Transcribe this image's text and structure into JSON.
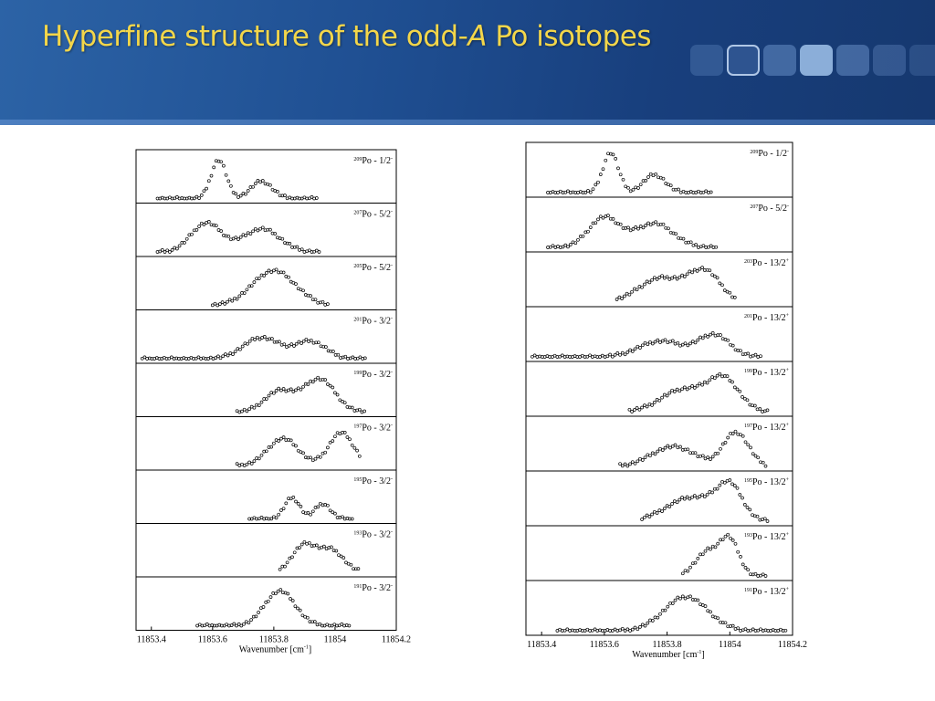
{
  "slide": {
    "title_pre": "Hyperfine structure of the odd-",
    "title_italic": "A",
    "title_post": " Po isotopes"
  },
  "colors": {
    "title": "#f3d64a",
    "banner": "#1d4a8a",
    "marker": "#000000"
  },
  "chart_data": [
    {
      "type": "scatter",
      "title": "",
      "xlabel": "Wavenumber [cm",
      "xlabel_sup": "-1",
      "xlabel_end": "]",
      "xlim": [
        11853.35,
        11854.2
      ],
      "xticks": [
        "11853.4",
        "11853.6",
        "11853.8",
        "11854",
        "11854.2"
      ],
      "panels": [
        {
          "isotope": "209",
          "label": "Po - 1/2",
          "sup": "-",
          "baseline": [
            11853.42,
            11853.58
          ],
          "peaks": [
            [
              11853.62,
              1.0,
              0.025
            ],
            [
              11853.76,
              0.45,
              0.035
            ]
          ],
          "range": [
            11853.42,
            11853.94
          ]
        },
        {
          "isotope": "207",
          "label": "Po - 5/2",
          "sup": "-",
          "baseline": [
            11853.42,
            11853.56
          ],
          "peaks": [
            [
              11853.58,
              0.75,
              0.05
            ],
            [
              11853.76,
              0.6,
              0.06
            ]
          ],
          "range": [
            11853.42,
            11853.95
          ]
        },
        {
          "isotope": "205",
          "label": "Po - 5/2",
          "sup": "-",
          "baseline": [
            11853.6,
            11853.68
          ],
          "peaks": [
            [
              11853.8,
              0.9,
              0.07
            ]
          ],
          "range": [
            11853.6,
            11853.98
          ]
        },
        {
          "isotope": "201",
          "label": "Po - 3/2",
          "sup": "-",
          "baseline": [
            11853.37,
            11853.65
          ],
          "peaks": [
            [
              11853.76,
              0.55,
              0.06
            ],
            [
              11853.92,
              0.45,
              0.05
            ]
          ],
          "range": [
            11853.37,
            11854.1
          ]
        },
        {
          "isotope": "199",
          "label": "Po - 3/2",
          "sup": "-",
          "baseline": [
            11853.68,
            11853.72
          ],
          "peaks": [
            [
              11853.82,
              0.55,
              0.05
            ],
            [
              11853.95,
              0.85,
              0.05
            ]
          ],
          "range": [
            11853.68,
            11854.1
          ]
        },
        {
          "isotope": "197",
          "label": "Po - 3/2",
          "sup": "-",
          "baseline": [
            11853.68,
            11853.75
          ],
          "peaks": [
            [
              11853.83,
              0.7,
              0.05
            ],
            [
              11854.02,
              0.85,
              0.04
            ]
          ],
          "range": [
            11853.68,
            11854.08
          ]
        },
        {
          "isotope": "195",
          "label": "Po - 3/2",
          "sup": "-",
          "baseline": [
            11853.72,
            11853.78
          ],
          "peaks": [
            [
              11853.86,
              0.55,
              0.025
            ],
            [
              11853.96,
              0.4,
              0.025
            ]
          ],
          "range": [
            11853.72,
            11854.06
          ]
        },
        {
          "isotope": "193",
          "label": "Po - 3/2",
          "sup": "-",
          "baseline": [
            11853.82,
            11853.85
          ],
          "peaks": [
            [
              11853.9,
              0.7,
              0.04
            ],
            [
              11853.99,
              0.55,
              0.04
            ]
          ],
          "range": [
            11853.82,
            11854.08
          ]
        },
        {
          "isotope": "191",
          "label": "Po - 3/2",
          "sup": "-",
          "baseline": [
            11853.55,
            11853.6
          ],
          "peaks": [
            [
              11853.82,
              0.9,
              0.05
            ]
          ],
          "range": [
            11853.55,
            11854.05
          ]
        }
      ]
    },
    {
      "type": "scatter",
      "title": "",
      "xlabel": "Wavenumber [cm",
      "xlabel_sup": "-1",
      "xlabel_end": "]",
      "xlim": [
        11853.35,
        11854.2
      ],
      "xticks": [
        "11853.4",
        "11853.6",
        "11853.8",
        "11854",
        "11854.2"
      ],
      "panels": [
        {
          "isotope": "209",
          "label": "Po - 1/2",
          "sup": "-",
          "baseline": [
            11853.42,
            11853.58
          ],
          "peaks": [
            [
              11853.62,
              1.0,
              0.025
            ],
            [
              11853.76,
              0.45,
              0.035
            ]
          ],
          "range": [
            11853.42,
            11853.94
          ]
        },
        {
          "isotope": "207",
          "label": "Po - 5/2",
          "sup": "-",
          "baseline": [
            11853.42,
            11853.56
          ],
          "peaks": [
            [
              11853.6,
              0.75,
              0.05
            ],
            [
              11853.76,
              0.6,
              0.06
            ]
          ],
          "range": [
            11853.42,
            11853.96
          ]
        },
        {
          "isotope": "203",
          "label": "Po - 13/2",
          "sup": "+",
          "baseline": [
            11853.64,
            11853.68
          ],
          "peaks": [
            [
              11853.78,
              0.6,
              0.07
            ],
            [
              11853.92,
              0.75,
              0.05
            ]
          ],
          "range": [
            11853.64,
            11854.02
          ]
        },
        {
          "isotope": "201",
          "label": "Po - 13/2",
          "sup": "+",
          "baseline": [
            11853.37,
            11853.65
          ],
          "peaks": [
            [
              11853.78,
              0.4,
              0.07
            ],
            [
              11853.95,
              0.55,
              0.05
            ]
          ],
          "range": [
            11853.37,
            11854.1
          ]
        },
        {
          "isotope": "199",
          "label": "Po - 13/2",
          "sup": "+",
          "baseline": [
            11853.68,
            11853.72
          ],
          "peaks": [
            [
              11853.85,
              0.55,
              0.07
            ],
            [
              11853.98,
              0.8,
              0.05
            ]
          ],
          "range": [
            11853.68,
            11854.12
          ]
        },
        {
          "isotope": "197",
          "label": "Po - 13/2",
          "sup": "+",
          "baseline": [
            11853.65,
            11853.7
          ],
          "peaks": [
            [
              11853.82,
              0.5,
              0.07
            ],
            [
              11854.02,
              0.85,
              0.04
            ]
          ],
          "range": [
            11853.65,
            11854.12
          ]
        },
        {
          "isotope": "195",
          "label": "Po - 13/2",
          "sup": "+",
          "baseline": [
            11853.72,
            11853.76
          ],
          "peaks": [
            [
              11853.88,
              0.6,
              0.08
            ],
            [
              11854.0,
              0.8,
              0.04
            ]
          ],
          "range": [
            11853.72,
            11854.12
          ]
        },
        {
          "isotope": "193",
          "label": "Po - 13/2",
          "sup": "+",
          "baseline": [
            11853.85,
            11853.88
          ],
          "peaks": [
            [
              11853.93,
              0.6,
              0.04
            ],
            [
              11854.0,
              0.85,
              0.03
            ]
          ],
          "range": [
            11853.85,
            11854.12
          ]
        },
        {
          "isotope": "191",
          "label": "Po - 13/2",
          "sup": "+",
          "baseline": [
            11853.45,
            11853.5
          ],
          "peaks": [
            [
              11853.86,
              0.85,
              0.07
            ]
          ],
          "range": [
            11853.45,
            11854.18
          ]
        }
      ]
    }
  ]
}
